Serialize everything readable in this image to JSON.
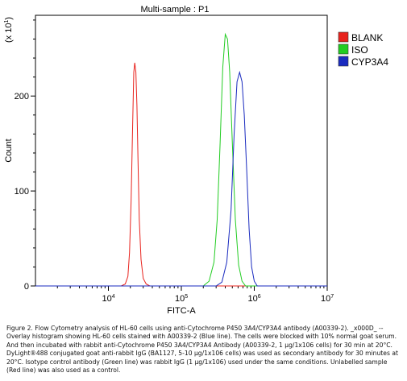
{
  "chart_data": {
    "type": "line",
    "title": "Multi-sample : P1",
    "xlabel": "FITC-A",
    "ylabel": "Count",
    "y_multiplier_label": "(x 10",
    "y_multiplier_exp": "1",
    "x_scale": "log",
    "xlim": [
      1000,
      10000000
    ],
    "ylim": [
      0,
      285
    ],
    "grid": false,
    "legend_position": "top-right (outside plot)",
    "x_ticks": [
      {
        "base": "10",
        "exp": "4",
        "value": 10000
      },
      {
        "base": "10",
        "exp": "5",
        "value": 100000
      },
      {
        "base": "10",
        "exp": "6",
        "value": 1000000
      },
      {
        "base": "10",
        "exp": "7",
        "value": 10000000
      }
    ],
    "y_ticks": [
      {
        "label": "0",
        "value": 0
      },
      {
        "label": "100",
        "value": 100
      },
      {
        "label": "200",
        "value": 200
      }
    ],
    "series": [
      {
        "name": "BLANK",
        "color": "#e8231d",
        "x": [
          15000,
          17000,
          18500,
          19500,
          20500,
          21500,
          22300,
          23000,
          23800,
          24600,
          25500,
          26500,
          28000,
          30000,
          33000,
          37000
        ],
        "y": [
          0,
          2,
          10,
          35,
          90,
          170,
          225,
          235,
          225,
          190,
          130,
          70,
          28,
          8,
          2,
          0
        ]
      },
      {
        "name": "ISO",
        "color": "#22cc22",
        "x": [
          200000,
          240000,
          280000,
          310000,
          340000,
          370000,
          400000,
          430000,
          460000,
          500000,
          550000,
          610000,
          680000,
          760000
        ],
        "y": [
          0,
          5,
          25,
          70,
          150,
          230,
          265,
          260,
          225,
          150,
          70,
          22,
          5,
          0
        ]
      },
      {
        "name": "CYP3A4",
        "color": "#1a2bbf",
        "x": [
          300000,
          360000,
          420000,
          480000,
          530000,
          580000,
          630000,
          680000,
          730000,
          790000,
          850000,
          920000,
          1000000,
          1100000
        ],
        "y": [
          0,
          4,
          25,
          80,
          160,
          215,
          225,
          215,
          180,
          120,
          60,
          20,
          5,
          0
        ]
      }
    ]
  },
  "caption": "Figure 2. Flow Cytometry analysis of HL-60 cells using anti-Cytochrome P450 3A4/CYP3A4 antibody (A00339-2). _x000D_ -- Overlay histogram showing HL-60 cells stained with A00339-2 (Blue line). The cells were blocked with 10% normal goat serum. And then incubated with rabbit anti-Cytochrome P450 3A4/CYP3A4 Antibody (A00339-2, 1 µg/1x106 cells) for 30 min at 20°C. DyLight®488 conjugated goat anti-rabbit IgG (BA1127, 5-10 µg/1x106 cells) was used as secondary antibody for 30 minutes at 20°C. Isotype control antibody (Green line) was rabbit IgG (1 µg/1x106) used under the same conditions. Unlabelled sample (Red line) was also used as a control."
}
